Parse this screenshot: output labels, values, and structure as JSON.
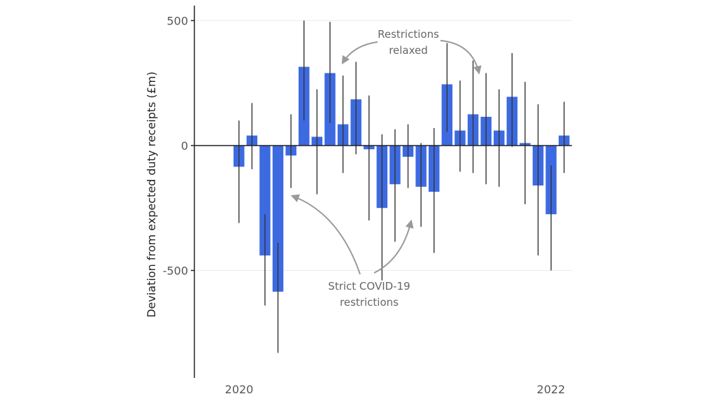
{
  "chart_data": {
    "type": "bar",
    "ylabel": "Deviation from expected duty receipts (£m)",
    "xlabel": "",
    "ylim": [
      -930,
      560
    ],
    "yticks": [
      500,
      0,
      -500
    ],
    "x_tick_labels": [
      "2020",
      "2022"
    ],
    "grid": "horizontal",
    "colors": {
      "bar": "#3d6ae0",
      "error_bar": "#333333",
      "arrow": "#999999"
    },
    "values": [
      -85,
      40,
      -440,
      -585,
      -40,
      315,
      35,
      290,
      85,
      185,
      -15,
      -250,
      -155,
      -45,
      -165,
      -185,
      245,
      60,
      125,
      115,
      60,
      195,
      10,
      -160,
      -275,
      40
    ],
    "error_low": [
      -310,
      -95,
      -640,
      -830,
      -170,
      100,
      -195,
      90,
      -110,
      -35,
      -300,
      -540,
      -385,
      -170,
      -325,
      -430,
      55,
      -105,
      -110,
      -155,
      -165,
      -5,
      -235,
      -440,
      -500,
      -110
    ],
    "error_high": [
      100,
      170,
      -275,
      -390,
      125,
      500,
      225,
      495,
      280,
      335,
      200,
      45,
      65,
      85,
      10,
      70,
      410,
      260,
      340,
      290,
      225,
      370,
      255,
      165,
      -80,
      175
    ],
    "annotations": {
      "relaxed_line1": "Restrictions",
      "relaxed_line2": "relaxed",
      "strict_line1": "Strict COVID-19",
      "strict_line2": "restrictions"
    }
  }
}
